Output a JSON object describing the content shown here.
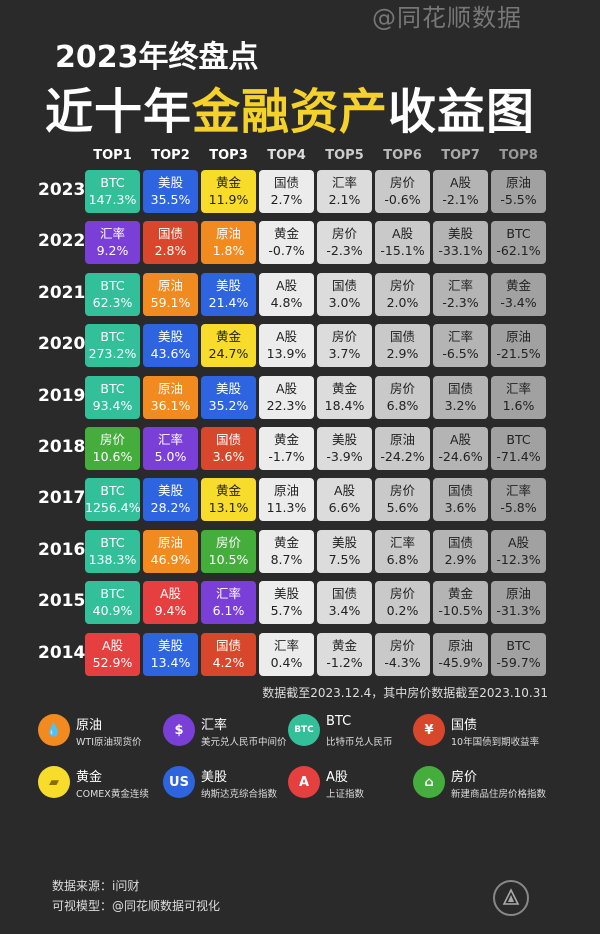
{
  "watermark": "@同花顺数据",
  "title_line1": "2023年终盘点",
  "title_line2_pre": "近十年",
  "title_line2_hl": "金融资产",
  "title_line2_post": "收益图",
  "chart_data": {
    "type": "table",
    "columns": [
      "TOP1",
      "TOP2",
      "TOP3",
      "TOP4",
      "TOP5",
      "TOP6",
      "TOP7",
      "TOP8"
    ],
    "rows": [
      {
        "year": "2023",
        "cells": [
          [
            "BTC",
            "147.3%"
          ],
          [
            "美股",
            "35.5%"
          ],
          [
            "黄金",
            "11.9%"
          ],
          [
            "国债",
            "2.7%"
          ],
          [
            "汇率",
            "2.1%"
          ],
          [
            "房价",
            "-0.6%"
          ],
          [
            "A股",
            "-2.1%"
          ],
          [
            "原油",
            "-5.5%"
          ]
        ]
      },
      {
        "year": "2022",
        "cells": [
          [
            "汇率",
            "9.2%"
          ],
          [
            "国债",
            "2.8%"
          ],
          [
            "原油",
            "1.8%"
          ],
          [
            "黄金",
            "-0.7%"
          ],
          [
            "房价",
            "-2.3%"
          ],
          [
            "A股",
            "-15.1%"
          ],
          [
            "美股",
            "-33.1%"
          ],
          [
            "BTC",
            "-62.1%"
          ]
        ]
      },
      {
        "year": "2021",
        "cells": [
          [
            "BTC",
            "62.3%"
          ],
          [
            "原油",
            "59.1%"
          ],
          [
            "美股",
            "21.4%"
          ],
          [
            "A股",
            "4.8%"
          ],
          [
            "国债",
            "3.0%"
          ],
          [
            "房价",
            "2.0%"
          ],
          [
            "汇率",
            "-2.3%"
          ],
          [
            "黄金",
            "-3.4%"
          ]
        ]
      },
      {
        "year": "2020",
        "cells": [
          [
            "BTC",
            "273.2%"
          ],
          [
            "美股",
            "43.6%"
          ],
          [
            "黄金",
            "24.7%"
          ],
          [
            "A股",
            "13.9%"
          ],
          [
            "房价",
            "3.7%"
          ],
          [
            "国债",
            "2.9%"
          ],
          [
            "汇率",
            "-6.5%"
          ],
          [
            "原油",
            "-21.5%"
          ]
        ]
      },
      {
        "year": "2019",
        "cells": [
          [
            "BTC",
            "93.4%"
          ],
          [
            "原油",
            "36.1%"
          ],
          [
            "美股",
            "35.2%"
          ],
          [
            "A股",
            "22.3%"
          ],
          [
            "黄金",
            "18.4%"
          ],
          [
            "房价",
            "6.8%"
          ],
          [
            "国债",
            "3.2%"
          ],
          [
            "汇率",
            "1.6%"
          ]
        ]
      },
      {
        "year": "2018",
        "cells": [
          [
            "房价",
            "10.6%"
          ],
          [
            "汇率",
            "5.0%"
          ],
          [
            "国债",
            "3.6%"
          ],
          [
            "黄金",
            "-1.7%"
          ],
          [
            "美股",
            "-3.9%"
          ],
          [
            "原油",
            "-24.2%"
          ],
          [
            "A股",
            "-24.6%"
          ],
          [
            "BTC",
            "-71.4%"
          ]
        ]
      },
      {
        "year": "2017",
        "cells": [
          [
            "BTC",
            "1256.4%"
          ],
          [
            "美股",
            "28.2%"
          ],
          [
            "黄金",
            "13.1%"
          ],
          [
            "原油",
            "11.3%"
          ],
          [
            "A股",
            "6.6%"
          ],
          [
            "房价",
            "5.6%"
          ],
          [
            "国债",
            "3.6%"
          ],
          [
            "汇率",
            "-5.8%"
          ]
        ]
      },
      {
        "year": "2016",
        "cells": [
          [
            "BTC",
            "138.3%"
          ],
          [
            "原油",
            "46.9%"
          ],
          [
            "房价",
            "10.5%"
          ],
          [
            "黄金",
            "8.7%"
          ],
          [
            "美股",
            "7.5%"
          ],
          [
            "汇率",
            "6.8%"
          ],
          [
            "国债",
            "2.9%"
          ],
          [
            "A股",
            "-12.3%"
          ]
        ]
      },
      {
        "year": "2015",
        "cells": [
          [
            "BTC",
            "40.9%"
          ],
          [
            "A股",
            "9.4%"
          ],
          [
            "汇率",
            "6.1%"
          ],
          [
            "美股",
            "5.7%"
          ],
          [
            "国债",
            "3.4%"
          ],
          [
            "房价",
            "0.2%"
          ],
          [
            "黄金",
            "-10.5%"
          ],
          [
            "原油",
            "-31.3%"
          ]
        ]
      },
      {
        "year": "2014",
        "cells": [
          [
            "A股",
            "52.9%"
          ],
          [
            "美股",
            "13.4%"
          ],
          [
            "国债",
            "4.2%"
          ],
          [
            "汇率",
            "0.4%"
          ],
          [
            "黄金",
            "-1.2%"
          ],
          [
            "房价",
            "-4.3%"
          ],
          [
            "原油",
            "-45.9%"
          ],
          [
            "BTC",
            "-59.7%"
          ]
        ]
      }
    ]
  },
  "asset_colors": {
    "BTC": "#33bf9a",
    "美股": "#2f64e0",
    "黄金": "#f7dc2c",
    "原油": "#f18a1f",
    "汇率": "#7a3fd6",
    "国债": "#d8472c",
    "房价": "#44ad3c",
    "A股": "#e53f3f"
  },
  "column_colors": [
    "",
    "",
    "",
    "#ececec",
    "#dcdcdc",
    "#c9c9c9",
    "#b4b4b4",
    "#a1a1a1"
  ],
  "note": "数据截至2023.12.4，其中房价数据截至2023.10.31",
  "legend": [
    {
      "asset": "原油",
      "desc": "WTI原油现货价",
      "icon": "oil-drop-icon",
      "glyph": "💧"
    },
    {
      "asset": "汇率",
      "desc": "美元兑人民币中间价",
      "icon": "dollar-icon",
      "glyph": "$"
    },
    {
      "asset": "BTC",
      "desc": "比特币兑人民币",
      "icon": "btc-icon",
      "glyph": "BTC"
    },
    {
      "asset": "国债",
      "desc": "10年国债到期收益率",
      "icon": "bond-icon",
      "glyph": "¥"
    },
    {
      "asset": "黄金",
      "desc": "COMEX黄金连续",
      "icon": "gold-bar-icon",
      "glyph": "▰"
    },
    {
      "asset": "美股",
      "desc": "纳斯达克综合指数",
      "icon": "us-stock-icon",
      "glyph": "US"
    },
    {
      "asset": "A股",
      "desc": "上证指数",
      "icon": "a-share-icon",
      "glyph": "A"
    },
    {
      "asset": "房价",
      "desc": "新建商品住房价格指数",
      "icon": "house-icon",
      "glyph": "⌂"
    }
  ],
  "source_label": "数据来源：i问财",
  "model_label": "可视模型：@同花顺数据可视化"
}
